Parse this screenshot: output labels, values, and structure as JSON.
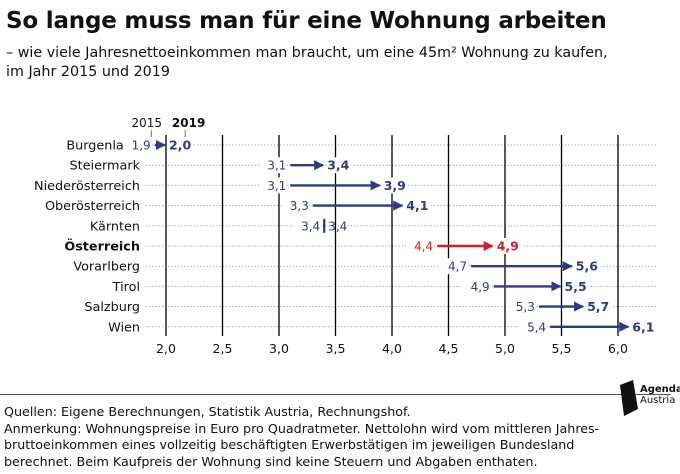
{
  "title": "So lange muss man für eine Wohnung arbeiten",
  "subtitle": [
    "– wie viele Jahresnettoeinkommen man braucht, um eine 45m² Wohnung zu kaufen,",
    "im Jahr 2015 und 2019"
  ],
  "footer": {
    "sources": "Quellen: Eigene Berechnungen, Statistik Austria, Rechnungshof.",
    "note": [
      "Anmerkung: Wohnungspreise in Euro pro Quadratmeter. Nettolohn wird vom mittleren Jahres-",
      "bruttoeinkommen eines vollzeitig beschäftigten Erwerbstätigen im jeweiligen Bundesland",
      "berechnet. Beim Kaufpreis der Wohnung sind keine Steuern und Abgaben enthaten."
    ]
  },
  "logo": {
    "line1": "Agenda",
    "line2": "Austria"
  },
  "colors": {
    "primary": "#2e3a87",
    "highlight": "#d01f2e",
    "text": "#111111",
    "grid": "#000000",
    "dots": "#9a9a9a"
  },
  "chart_data": {
    "type": "dumbbell",
    "legend": {
      "start": "2015",
      "end": "2019"
    },
    "xlim": [
      1.6,
      6.3
    ],
    "xticks": [
      2.0,
      2.5,
      3.0,
      3.5,
      4.0,
      4.5,
      5.0,
      5.5,
      6.0
    ],
    "xtick_labels": [
      "2,0",
      "2,5",
      "3,0",
      "3,5",
      "4,0",
      "4,5",
      "5,0",
      "5,5",
      "6,0"
    ],
    "series_keys": [
      "2015",
      "2019"
    ],
    "rows": [
      {
        "label": "Burgenland",
        "v2015": 1.9,
        "v2019": 2.0,
        "l2015": "1,9",
        "l2019": "2,0",
        "highlight": false
      },
      {
        "label": "Steiermark",
        "v2015": 3.1,
        "v2019": 3.4,
        "l2015": "3,1",
        "l2019": "3,4",
        "highlight": false
      },
      {
        "label": "Niederösterreich",
        "v2015": 3.1,
        "v2019": 3.9,
        "l2015": "3,1",
        "l2019": "3,9",
        "highlight": false
      },
      {
        "label": "Oberösterreich",
        "v2015": 3.3,
        "v2019": 4.1,
        "l2015": "3,3",
        "l2019": "4,1",
        "highlight": false
      },
      {
        "label": "Kärnten",
        "v2015": 3.4,
        "v2019": 3.4,
        "l2015": "3,4",
        "l2019": "3,4",
        "highlight": false
      },
      {
        "label": "Österreich",
        "v2015": 4.4,
        "v2019": 4.9,
        "l2015": "4,4",
        "l2019": "4,9",
        "highlight": true
      },
      {
        "label": "Vorarlberg",
        "v2015": 4.7,
        "v2019": 5.6,
        "l2015": "4,7",
        "l2019": "5,6",
        "highlight": false
      },
      {
        "label": "Tirol",
        "v2015": 4.9,
        "v2019": 5.5,
        "l2015": "4,9",
        "l2019": "5,5",
        "highlight": false
      },
      {
        "label": "Salzburg",
        "v2015": 5.3,
        "v2019": 5.7,
        "l2015": "5,3",
        "l2019": "5,7",
        "highlight": false
      },
      {
        "label": "Wien",
        "v2015": 5.4,
        "v2019": 6.1,
        "l2015": "5,4",
        "l2019": "6,1",
        "highlight": false
      }
    ]
  }
}
